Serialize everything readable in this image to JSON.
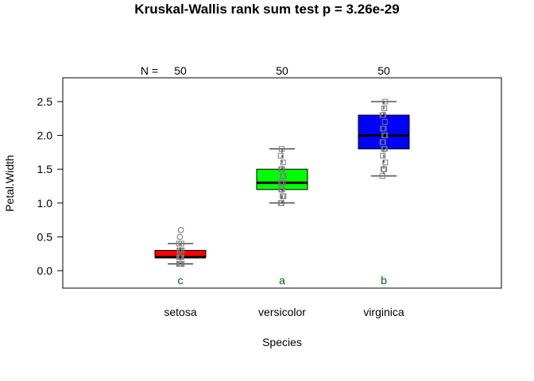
{
  "chart_data": {
    "type": "boxplot",
    "title": "Kruskal-Wallis rank sum test p = 3.26e-29",
    "xlabel": "Species",
    "ylabel": "Petal.Width",
    "ylim": [
      -0.25,
      2.8
    ],
    "yticks": [
      0.0,
      0.5,
      1.0,
      1.5,
      2.0,
      2.5
    ],
    "ytick_labels": [
      "0.0",
      "0.5",
      "1.0",
      "1.5",
      "2.0",
      "2.5"
    ],
    "n_label": "N =",
    "legend": "none",
    "grid": false,
    "categories": [
      "setosa",
      "versicolor",
      "virginica"
    ],
    "series": [
      {
        "category": "setosa",
        "n": "50",
        "letter": "c",
        "color": "#ff0000",
        "min": 0.1,
        "q1": 0.2,
        "median": 0.2,
        "q3": 0.3,
        "max": 0.4,
        "points": [
          0.1,
          0.1,
          0.1,
          0.1,
          0.1,
          0.2,
          0.2,
          0.2,
          0.2,
          0.2,
          0.3,
          0.3,
          0.3,
          0.4,
          0.4,
          0.5,
          0.6
        ]
      },
      {
        "category": "versicolor",
        "n": "50",
        "letter": "a",
        "color": "#00ff00",
        "min": 1.0,
        "q1": 1.2,
        "median": 1.3,
        "q3": 1.5,
        "max": 1.8,
        "points": [
          1.0,
          1.0,
          1.1,
          1.1,
          1.2,
          1.2,
          1.3,
          1.3,
          1.3,
          1.4,
          1.4,
          1.5,
          1.5,
          1.6,
          1.7,
          1.8
        ]
      },
      {
        "category": "virginica",
        "n": "50",
        "letter": "b",
        "color": "#0000ff",
        "min": 1.4,
        "q1": 1.8,
        "median": 2.0,
        "q3": 2.3,
        "max": 2.5,
        "points": [
          1.4,
          1.5,
          1.5,
          1.6,
          1.7,
          1.8,
          1.8,
          1.9,
          1.9,
          2.0,
          2.0,
          2.1,
          2.1,
          2.2,
          2.3,
          2.3,
          2.4,
          2.5
        ]
      }
    ],
    "letter_color": "#006400"
  }
}
